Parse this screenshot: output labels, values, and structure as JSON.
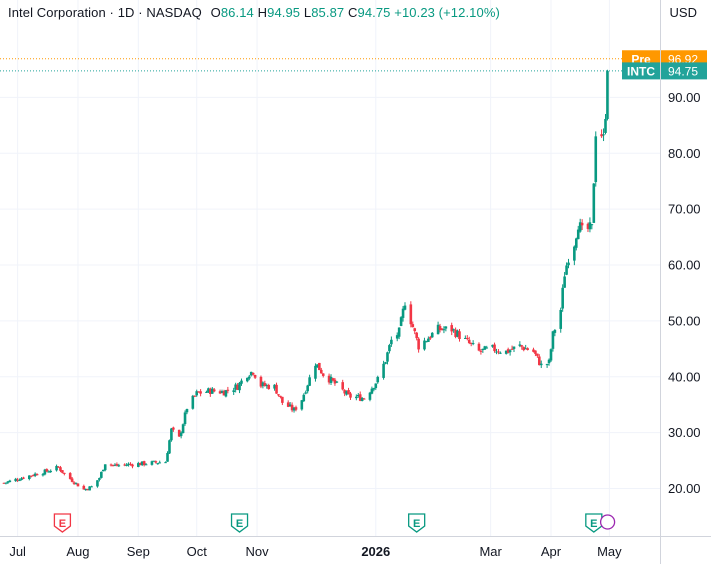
{
  "header": {
    "symbol_name": "Intel Corporation",
    "interval": "1D",
    "exchange": "NASDAQ",
    "open_label": "O",
    "open": "86.14",
    "high_label": "H",
    "high": "94.95",
    "low_label": "L",
    "low": "85.87",
    "close_label": "C",
    "close": "94.75",
    "change": "+10.23 (+12.10%)",
    "currency": "USD"
  },
  "colors": {
    "up": "#089981",
    "down": "#F23645",
    "pre": "#FF9800",
    "ticker_badge": "#22A39A",
    "grid": "#F0F3FA",
    "axis_text": "#131722"
  },
  "badges": [
    {
      "label": "Pre",
      "value": "96.92",
      "price": 96.92,
      "color": "#FF9800"
    },
    {
      "label": "INTC",
      "value": "94.75",
      "price": 94.75,
      "color": "#22A39A"
    }
  ],
  "earnings_markers": [
    {
      "label": "E",
      "date": "2025-07-24",
      "color": "#F23645"
    },
    {
      "label": "E",
      "date": "2025-10-23",
      "color": "#089981"
    },
    {
      "label": "E",
      "date": "2026-01-22",
      "color": "#089981"
    },
    {
      "label": "E",
      "date": "2026-04-23",
      "color": "#089981"
    }
  ],
  "dividend_marker": {
    "date": "2026-04-27",
    "color": "#9C27B0"
  },
  "chart_data": {
    "type": "candlestick",
    "y_ticks": [
      "20.00",
      "30.00",
      "40.00",
      "50.00",
      "60.00",
      "70.00",
      "80.00",
      "90.00"
    ],
    "y_tick_values": [
      20,
      30,
      40,
      50,
      60,
      70,
      80,
      90
    ],
    "ylim": [
      11.5,
      103.5
    ],
    "x_ticks": [
      {
        "label": "Jul",
        "date": "2025-07-01"
      },
      {
        "label": "Aug",
        "date": "2025-08-01"
      },
      {
        "label": "Sep",
        "date": "2025-09-01"
      },
      {
        "label": "Oct",
        "date": "2025-10-01"
      },
      {
        "label": "Nov",
        "date": "2025-11-01"
      },
      {
        "label": "2026",
        "date": "2026-01-01"
      },
      {
        "label": "Mar",
        "date": "2026-03-01"
      },
      {
        "label": "Apr",
        "date": "2026-04-01"
      },
      {
        "label": "May",
        "date": "2026-05-01"
      }
    ],
    "xlim": [
      "2025-06-24",
      "2026-05-27"
    ],
    "price_path": [
      [
        "2025-06-24",
        21.0
      ],
      [
        "2025-06-30",
        21.6
      ],
      [
        "2025-07-08",
        22.4
      ],
      [
        "2025-07-16",
        23.1
      ],
      [
        "2025-07-22",
        23.8
      ],
      [
        "2025-07-25",
        22.6
      ],
      [
        "2025-07-31",
        20.9
      ],
      [
        "2025-08-04",
        19.8
      ],
      [
        "2025-08-08",
        20.3
      ],
      [
        "2025-08-12",
        21.9
      ],
      [
        "2025-08-15",
        24.6
      ],
      [
        "2025-08-20",
        24.1
      ],
      [
        "2025-08-27",
        24.3
      ],
      [
        "2025-09-05",
        24.5
      ],
      [
        "2025-09-15",
        24.8
      ],
      [
        "2025-09-18",
        30.5
      ],
      [
        "2025-09-22",
        29.0
      ],
      [
        "2025-09-26",
        34.5
      ],
      [
        "2025-10-01",
        37.0
      ],
      [
        "2025-10-08",
        37.5
      ],
      [
        "2025-10-15",
        37.3
      ],
      [
        "2025-10-22",
        38.3
      ],
      [
        "2025-10-27",
        40.5
      ],
      [
        "2025-10-30",
        41.0
      ],
      [
        "2025-11-03",
        38.5
      ],
      [
        "2025-11-10",
        38.2
      ],
      [
        "2025-11-14",
        35.4
      ],
      [
        "2025-11-20",
        34.0
      ],
      [
        "2025-11-24",
        36.0
      ],
      [
        "2025-12-01",
        42.5
      ],
      [
        "2025-12-05",
        40.5
      ],
      [
        "2025-12-12",
        38.5
      ],
      [
        "2025-12-18",
        36.5
      ],
      [
        "2025-12-26",
        36.2
      ],
      [
        "2026-01-02",
        39.5
      ],
      [
        "2026-01-06",
        43.0
      ],
      [
        "2026-01-09",
        46.5
      ],
      [
        "2026-01-13",
        48.0
      ],
      [
        "2026-01-16",
        53.5
      ],
      [
        "2026-01-23",
        45.5
      ],
      [
        "2026-01-28",
        47.0
      ],
      [
        "2026-02-02",
        48.5
      ],
      [
        "2026-02-09",
        48.5
      ],
      [
        "2026-02-16",
        46.5
      ],
      [
        "2026-02-23",
        44.5
      ],
      [
        "2026-03-02",
        45.0
      ],
      [
        "2026-03-09",
        44.5
      ],
      [
        "2026-03-16",
        45.5
      ],
      [
        "2026-03-23",
        44.5
      ],
      [
        "2026-03-27",
        42.0
      ],
      [
        "2026-03-31",
        42.5
      ],
      [
        "2026-04-02",
        47.5
      ],
      [
        "2026-04-06",
        52.0
      ],
      [
        "2026-04-08",
        58.5
      ],
      [
        "2026-04-10",
        61.5
      ],
      [
        "2026-04-13",
        64.0
      ],
      [
        "2026-04-15",
        67.5
      ],
      [
        "2026-04-17",
        66.0
      ],
      [
        "2026-04-21",
        66.5
      ],
      [
        "2026-04-22",
        66.5
      ],
      [
        "2026-04-24",
        84.0
      ],
      [
        "2026-04-27",
        83.5
      ],
      [
        "2026-04-28",
        82.5
      ],
      [
        "2026-04-29",
        86.14
      ]
    ],
    "last_candle": {
      "date": "2026-04-30",
      "open": 86.14,
      "high": 94.95,
      "low": 85.87,
      "close": 94.75
    }
  }
}
